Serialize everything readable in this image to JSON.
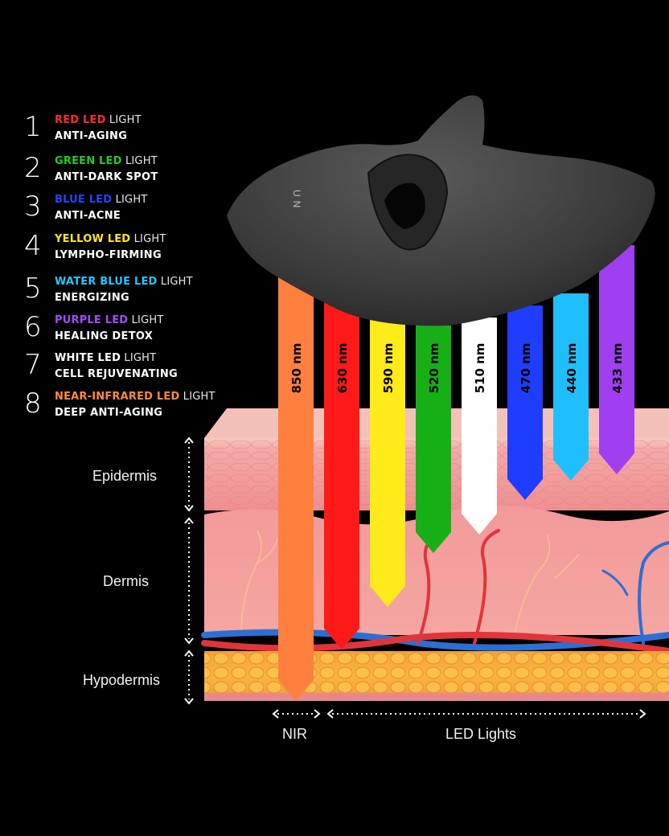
{
  "legend": [
    {
      "num": "1",
      "led": "RED LED",
      "suffix": " LIGHT",
      "benefit": "ANTI-AGING",
      "color": "#ff2b2b"
    },
    {
      "num": "2",
      "led": "GREEN LED",
      "suffix": " LIGHT",
      "benefit": "ANTI-DARK SPOT",
      "color": "#22cc22"
    },
    {
      "num": "3",
      "led": "BLUE LED",
      "suffix": " LIGHT",
      "benefit": "ANTI-ACNE",
      "color": "#2244ff"
    },
    {
      "num": "4",
      "led": "YELLOW LED",
      "suffix": " LIGHT",
      "benefit": "LYMPHO-FIRMING",
      "color": "#ffe81a"
    },
    {
      "num": "5",
      "led": "WATER BLUE LED",
      "suffix": " LIGHT",
      "benefit": "ENERGIZING",
      "color": "#22c6ff"
    },
    {
      "num": "6",
      "led": "PURPLE LED",
      "suffix": " LIGHT",
      "benefit": "HEALING DETOX",
      "color": "#a64bff"
    },
    {
      "num": "7",
      "led": "WHITE LED",
      "suffix": " LIGHT",
      "benefit": "CELL REJUVENATING",
      "color": "#ffffff"
    },
    {
      "num": "8",
      "led": "NEAR-INFRARED LED",
      "suffix": " LIGHT",
      "benefit": "DEEP ANTI-AGING",
      "color": "#ff8a3d"
    }
  ],
  "beams": [
    {
      "label": "850 nm",
      "color": "#ff7f3f",
      "depth": "hypodermis"
    },
    {
      "label": "630 nm",
      "color": "#ff1a1a",
      "depth": "lower-dermis"
    },
    {
      "label": "590 nm",
      "color": "#ffea1a",
      "depth": "mid-dermis"
    },
    {
      "label": "520 nm",
      "color": "#16b016",
      "depth": "upper-dermis"
    },
    {
      "label": "510 nm",
      "color": "#ffffff",
      "depth": "upper-dermis"
    },
    {
      "label": "470 nm",
      "color": "#1f3dff",
      "depth": "epidermis"
    },
    {
      "label": "440 nm",
      "color": "#1fbfff",
      "depth": "epidermis"
    },
    {
      "label": "433 nm",
      "color": "#a03ff0",
      "depth": "epidermis"
    }
  ],
  "layers": {
    "epidermis": "Epidermis",
    "dermis": "Dermis",
    "hypodermis": "Hypodermis"
  },
  "bottom": {
    "nir": "NIR",
    "led": "LED Lights"
  },
  "mask": {
    "brand": "UN"
  }
}
